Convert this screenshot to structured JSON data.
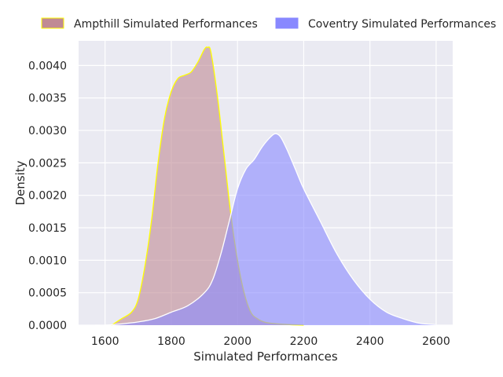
{
  "chart_data": {
    "type": "area",
    "title": "",
    "xlabel": "Simulated Performances",
    "ylabel": "Density",
    "xlim": [
      1520,
      2650
    ],
    "ylim": [
      0,
      0.00438
    ],
    "x_ticks": [
      1600,
      1800,
      2000,
      2200,
      2400,
      2600
    ],
    "y_ticks": [
      0.0,
      0.0005,
      0.001,
      0.0015,
      0.002,
      0.0025,
      0.003,
      0.0035,
      0.004
    ],
    "y_tick_labels": [
      "0.0000",
      "0.0005",
      "0.0010",
      "0.0015",
      "0.0020",
      "0.0025",
      "0.0030",
      "0.0035",
      "0.0040"
    ],
    "grid": true,
    "legend_position": "top",
    "series": [
      {
        "name": "Ampthill Simulated Performances",
        "fill": "#c08a94",
        "edge": "#ffff00",
        "x": [
          1620,
          1650,
          1680,
          1700,
          1720,
          1740,
          1760,
          1780,
          1800,
          1820,
          1840,
          1860,
          1880,
          1900,
          1910,
          1920,
          1940,
          1960,
          1980,
          2000,
          2020,
          2040,
          2060,
          2080,
          2100,
          2150,
          2200
        ],
        "y": [
          0.0,
          0.0001,
          0.0002,
          0.0004,
          0.0009,
          0.0016,
          0.0025,
          0.0032,
          0.0036,
          0.0038,
          0.00385,
          0.0039,
          0.00405,
          0.00425,
          0.00428,
          0.0042,
          0.0035,
          0.0026,
          0.0017,
          0.001,
          0.0005,
          0.0002,
          0.0001,
          5e-05,
          3e-05,
          1e-05,
          0.0
        ]
      },
      {
        "name": "Coventry Simulated Performances",
        "fill": "#8888ff",
        "edge": "#ffffff",
        "x": [
          1570,
          1600,
          1650,
          1700,
          1750,
          1800,
          1850,
          1900,
          1925,
          1950,
          1975,
          2000,
          2025,
          2050,
          2075,
          2100,
          2115,
          2130,
          2150,
          2175,
          2200,
          2250,
          2300,
          2350,
          2400,
          2450,
          2500,
          2550,
          2600
        ],
        "y": [
          0.0,
          0.0,
          2e-05,
          5e-05,
          0.0001,
          0.0002,
          0.0003,
          0.0005,
          0.0007,
          0.0011,
          0.0016,
          0.0021,
          0.0024,
          0.00255,
          0.00275,
          0.0029,
          0.00295,
          0.0029,
          0.0027,
          0.0024,
          0.0021,
          0.0016,
          0.0011,
          0.0007,
          0.0004,
          0.0002,
          0.0001,
          3e-05,
          1e-05
        ]
      }
    ]
  }
}
